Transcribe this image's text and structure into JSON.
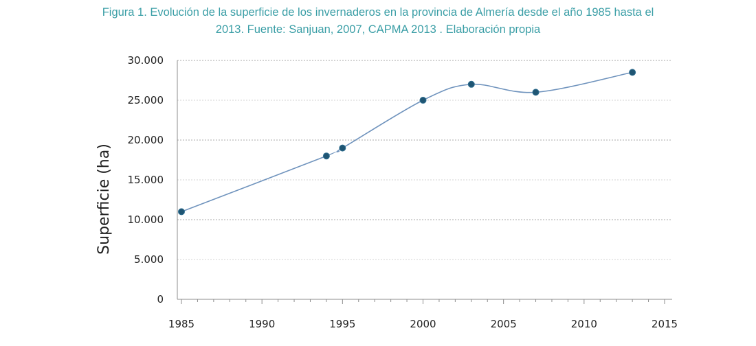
{
  "caption": {
    "line1": "Figura 1. Evolución de la superficie de los invernaderos en la provincia de Almería desde el año 1985 hasta el",
    "line2": "2013. Fuente: Sanjuan, 2007, CAPMA 2013 . Elaboración propia"
  },
  "colors": {
    "caption": "#3a9ea6",
    "line": "#6f93bd",
    "marker": "#1f5573",
    "grid": "#a8a8a8"
  },
  "chart_data": {
    "type": "scatter",
    "title": "",
    "xlabel": "",
    "ylabel": "Superficie (ha)",
    "xlim": [
      1985,
      2015
    ],
    "ylim": [
      0,
      30000
    ],
    "x_ticks": [
      1985,
      1990,
      1995,
      2000,
      2005,
      2010,
      2015
    ],
    "x_tick_labels": [
      "1985",
      "1990",
      "1995",
      "2000",
      "2005",
      "2010",
      "2015"
    ],
    "y_ticks": [
      0,
      5000,
      10000,
      15000,
      20000,
      25000,
      30000
    ],
    "y_tick_labels": [
      "0",
      "5.000",
      "10.000",
      "15.000",
      "20.000",
      "25.000",
      "30.000"
    ],
    "grid": true,
    "smoothed_line": true,
    "series": [
      {
        "x": [
          1985,
          1994,
          1995,
          2000,
          2003,
          2007,
          2013
        ],
        "y": [
          11000,
          18000,
          19000,
          25000,
          27000,
          26000,
          28500
        ]
      }
    ]
  }
}
